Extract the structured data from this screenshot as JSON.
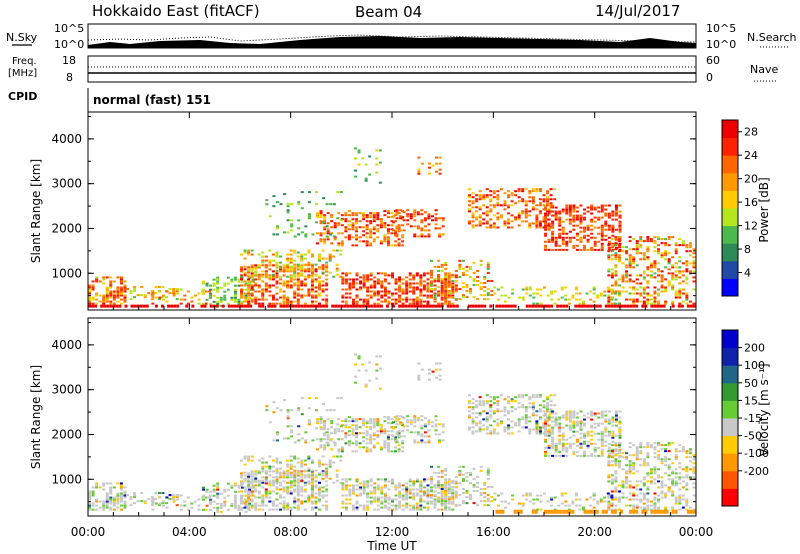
{
  "header": {
    "station": "Hokkaido East (fitACF)",
    "beam": "Beam 04",
    "date": "14/Jul/2017"
  },
  "strip": {
    "nsky_label": "N.Sky",
    "nsky_ticks": [
      "10^5",
      "10^0"
    ],
    "nsearch_label": "N.Search",
    "nsearch_ticks": [
      "10^5",
      "10^0"
    ],
    "freq_label": "Freq.",
    "freq_unit": "[MHz]",
    "freq_ticks": [
      "18",
      "8"
    ],
    "nave_label": "Nave",
    "nave_ticks": [
      "60",
      "0"
    ],
    "cpid_label": "CPID",
    "cpid_text": "normal (fast) 151"
  },
  "colors": {
    "power": [
      "#0000ff",
      "#1f4aa8",
      "#2e8b57",
      "#4db84d",
      "#b5e61d",
      "#ffcc00",
      "#ff9900",
      "#ff6600",
      "#ff2200",
      "#ee0000"
    ],
    "velocity": [
      "#ff0000",
      "#ff5500",
      "#ff9900",
      "#ffcc00",
      "#c8c8c8",
      "#66cc33",
      "#339933",
      "#226688",
      "#1122aa",
      "#0000cc"
    ]
  },
  "chart_data": [
    {
      "type": "heatmap",
      "title": "Power",
      "ylabel": "Slant Range [km]",
      "xlabel": "Time UT",
      "yticks": [
        "1000",
        "2000",
        "3000",
        "4000"
      ],
      "ylim": [
        180,
        4600
      ],
      "xticks": [
        "00:00",
        "04:00",
        "08:00",
        "12:00",
        "16:00",
        "20:00",
        "00:00"
      ],
      "xlim_hours": [
        0,
        24
      ],
      "colorbar_label": "Power [dB]",
      "colorbar_ticks": [
        "4",
        "8",
        "12",
        "16",
        "20",
        "24",
        "28"
      ],
      "colorbar_range": [
        0,
        30
      ]
    },
    {
      "type": "heatmap",
      "title": "Velocity",
      "ylabel": "Slant Range [km]",
      "xlabel": "Time UT",
      "yticks": [
        "1000",
        "2000",
        "3000",
        "4000"
      ],
      "ylim": [
        180,
        4600
      ],
      "xticks": [
        "00:00",
        "04:00",
        "08:00",
        "12:00",
        "16:00",
        "20:00",
        "00:00"
      ],
      "xlim_hours": [
        0,
        24
      ],
      "colorbar_label": "Velocity [m s⁻¹]",
      "colorbar_ticks": [
        "200",
        "100",
        "50",
        "15",
        "-15",
        "-50",
        "-100",
        "-200"
      ]
    }
  ]
}
